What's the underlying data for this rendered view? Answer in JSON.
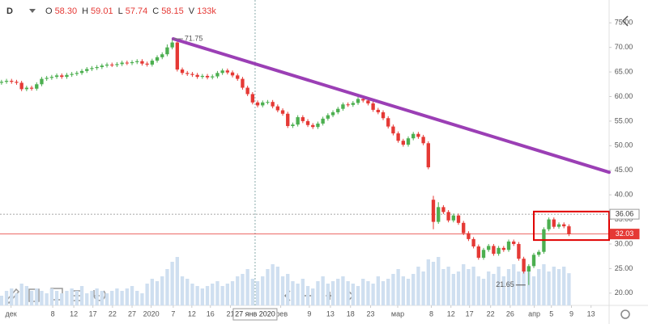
{
  "header": {
    "symbol": "D",
    "ohlcv": [
      {
        "label": "O",
        "value": "58.30"
      },
      {
        "label": "H",
        "value": "59.01"
      },
      {
        "label": "L",
        "value": "57.74"
      },
      {
        "label": "C",
        "value": "58.15"
      },
      {
        "label": "V",
        "value": "133k"
      }
    ]
  },
  "chart_data": {
    "type": "candlestick",
    "open": [
      62.8,
      63.0,
      63.2,
      63.0,
      62.8,
      61.5,
      61.8,
      61.6,
      62.5,
      63.6,
      63.8,
      64.0,
      64.3,
      64.0,
      64.4,
      64.6,
      64.8,
      65.2,
      65.6,
      65.8,
      66.0,
      66.3,
      66.5,
      66.4,
      66.6,
      66.9,
      66.8,
      67.0,
      67.2,
      66.7,
      66.5,
      67.3,
      68.0,
      68.6,
      70.0,
      71.0,
      65.5,
      64.8,
      64.6,
      64.4,
      64.0,
      64.2,
      63.9,
      64.1,
      64.8,
      65.3,
      64.9,
      64.3,
      63.6,
      61.8,
      60.5,
      58.8,
      58.2,
      58.8,
      58.9,
      58.0,
      57.2,
      56.5,
      54.0,
      54.3,
      55.8,
      55.0,
      54.2,
      53.8,
      54.5,
      55.5,
      56.2,
      56.8,
      57.5,
      58.4,
      58.3,
      58.7,
      59.5,
      59.2,
      58.6,
      57.3,
      56.8,
      55.6,
      53.9,
      52.5,
      51.0,
      50.2,
      51.5,
      52.4,
      51.8,
      50.5,
      39.0,
      34.5,
      37.5,
      36.5,
      34.8,
      35.8,
      34.3,
      32.2,
      31.0,
      29.5,
      27.2,
      28.8,
      29.6,
      28.0,
      29.2,
      28.8,
      30.5,
      30.0,
      27.0,
      24.4,
      25.5,
      27.8,
      28.4,
      33.0,
      35.0,
      33.5,
      34.0,
      33.6
    ],
    "high": [
      63.4,
      63.6,
      63.6,
      63.4,
      63.2,
      62.2,
      62.2,
      62.9,
      64.0,
      64.2,
      64.4,
      64.7,
      64.7,
      64.8,
      65.0,
      65.2,
      65.6,
      66.0,
      66.2,
      66.4,
      66.7,
      66.9,
      66.9,
      67.0,
      67.3,
      67.3,
      67.4,
      67.6,
      67.6,
      67.1,
      67.7,
      68.4,
      69.0,
      70.6,
      71.75,
      71.4,
      65.9,
      65.2,
      65.0,
      64.8,
      64.6,
      64.6,
      64.5,
      65.2,
      65.7,
      65.7,
      65.3,
      64.7,
      64.0,
      62.2,
      60.9,
      59.2,
      59.2,
      59.3,
      59.3,
      58.4,
      57.6,
      56.9,
      54.7,
      56.2,
      56.2,
      55.4,
      54.6,
      54.9,
      55.9,
      56.6,
      57.2,
      57.9,
      58.8,
      58.8,
      59.1,
      59.9,
      59.9,
      59.6,
      59.0,
      57.7,
      57.2,
      56.0,
      54.3,
      52.9,
      51.4,
      51.9,
      52.8,
      52.8,
      52.2,
      50.9,
      39.8,
      38.5,
      37.9,
      36.9,
      36.2,
      36.2,
      34.7,
      32.6,
      31.4,
      29.9,
      29.2,
      30.0,
      30.0,
      29.6,
      29.6,
      30.9,
      30.9,
      30.4,
      27.4,
      25.9,
      28.2,
      28.8,
      33.4,
      35.4,
      35.4,
      34.4,
      34.4,
      34.0
    ],
    "low": [
      62.4,
      62.6,
      62.6,
      62.4,
      61.1,
      61.1,
      61.2,
      61.2,
      62.1,
      63.2,
      63.4,
      63.6,
      63.6,
      63.6,
      64.0,
      64.2,
      64.4,
      64.8,
      65.2,
      65.4,
      65.6,
      65.9,
      66.0,
      66.0,
      66.2,
      66.4,
      66.4,
      66.6,
      66.3,
      66.1,
      66.1,
      66.9,
      67.6,
      68.2,
      69.6,
      65.1,
      64.4,
      64.2,
      64.0,
      63.6,
      63.6,
      63.5,
      63.5,
      63.7,
      64.4,
      64.5,
      63.9,
      63.2,
      61.4,
      60.1,
      58.4,
      57.8,
      57.8,
      58.4,
      57.6,
      56.8,
      56.1,
      53.6,
      53.6,
      53.9,
      54.6,
      53.8,
      53.4,
      53.4,
      54.1,
      55.1,
      55.8,
      56.4,
      57.1,
      57.9,
      57.9,
      58.3,
      58.8,
      58.2,
      56.9,
      56.4,
      55.2,
      53.5,
      52.1,
      50.6,
      49.8,
      49.8,
      51.1,
      51.4,
      50.1,
      45.2,
      33.0,
      34.1,
      36.1,
      34.4,
      34.4,
      33.9,
      31.8,
      30.6,
      29.1,
      26.8,
      26.8,
      28.4,
      27.6,
      27.6,
      28.4,
      28.4,
      29.6,
      26.6,
      24.0,
      21.65,
      25.1,
      27.4,
      28.0,
      32.6,
      33.1,
      33.1,
      33.2,
      31.6
    ],
    "close": [
      63.0,
      63.2,
      63.0,
      62.8,
      61.5,
      61.8,
      61.6,
      62.5,
      63.6,
      63.8,
      64.0,
      64.3,
      64.0,
      64.4,
      64.6,
      64.8,
      65.2,
      65.6,
      65.8,
      66.0,
      66.3,
      66.5,
      66.4,
      66.6,
      66.9,
      66.8,
      67.0,
      67.2,
      66.7,
      66.5,
      67.3,
      68.0,
      68.6,
      70.0,
      71.0,
      65.5,
      64.8,
      64.6,
      64.4,
      64.0,
      64.2,
      63.9,
      64.1,
      64.8,
      65.3,
      64.9,
      64.3,
      63.6,
      61.8,
      60.5,
      58.8,
      58.2,
      58.8,
      58.9,
      58.0,
      57.2,
      56.5,
      54.0,
      54.3,
      55.8,
      55.0,
      54.2,
      53.8,
      54.5,
      55.5,
      56.2,
      56.8,
      57.5,
      58.4,
      58.3,
      58.7,
      59.5,
      59.2,
      58.6,
      57.3,
      56.8,
      55.6,
      53.9,
      52.5,
      51.0,
      50.2,
      51.5,
      52.4,
      51.8,
      50.5,
      45.6,
      34.5,
      37.5,
      36.5,
      34.8,
      35.8,
      34.3,
      32.2,
      31.0,
      29.5,
      27.2,
      28.8,
      29.6,
      28.0,
      29.2,
      28.8,
      30.5,
      30.0,
      27.0,
      24.4,
      25.5,
      27.8,
      28.4,
      33.0,
      35.0,
      33.5,
      34.0,
      33.6,
      32.03
    ],
    "volume": [
      40,
      60,
      70,
      50,
      90,
      80,
      60,
      70,
      60,
      50,
      70,
      60,
      50,
      60,
      70,
      60,
      80,
      50,
      60,
      70,
      60,
      50,
      60,
      70,
      60,
      70,
      80,
      60,
      50,
      90,
      110,
      100,
      120,
      150,
      180,
      200,
      120,
      110,
      90,
      80,
      70,
      80,
      90,
      100,
      80,
      90,
      100,
      120,
      130,
      150,
      110,
      100,
      120,
      150,
      170,
      160,
      120,
      130,
      100,
      90,
      110,
      80,
      70,
      100,
      120,
      90,
      100,
      110,
      120,
      100,
      90,
      80,
      110,
      100,
      90,
      120,
      100,
      110,
      130,
      150,
      120,
      110,
      130,
      160,
      140,
      190,
      180,
      200,
      150,
      160,
      130,
      140,
      170,
      150,
      160,
      120,
      110,
      140,
      130,
      160,
      120,
      150,
      170,
      140,
      190,
      160,
      120,
      150,
      170,
      140,
      160,
      150,
      160,
      133
    ],
    "up_color": "#4caf50",
    "down_color": "#e53935",
    "volume_color": "#cfdff0",
    "xlim": [
      -0.3,
      121
    ],
    "ylim": [
      17.5,
      78
    ],
    "volume_ylim": [
      0,
      500
    ],
    "yticks": [
      {
        "value": 20,
        "label": "20.00"
      },
      {
        "value": 25,
        "label": "25.00"
      },
      {
        "value": 30,
        "label": "30.00"
      },
      {
        "value": 35,
        "label": "35.00"
      },
      {
        "value": 40,
        "label": "40.00"
      },
      {
        "value": 45,
        "label": "45.00"
      },
      {
        "value": 50,
        "label": "50.00"
      },
      {
        "value": 55,
        "label": "55.00"
      },
      {
        "value": 60,
        "label": "60.00"
      },
      {
        "value": 65,
        "label": "65.00"
      },
      {
        "value": 70,
        "label": "70.00"
      },
      {
        "value": 75,
        "label": "75.00"
      }
    ],
    "xticks": [
      {
        "value": 1.9,
        "label": "дек"
      },
      {
        "value": 10.2,
        "label": "8"
      },
      {
        "value": 14.4,
        "label": "12"
      },
      {
        "value": 18.2,
        "label": "17"
      },
      {
        "value": 22.1,
        "label": "22"
      },
      {
        "value": 26,
        "label": "27"
      },
      {
        "value": 29.8,
        "label": "2020"
      },
      {
        "value": 34.2,
        "label": "7"
      },
      {
        "value": 37.9,
        "label": "12"
      },
      {
        "value": 41.6,
        "label": "16"
      },
      {
        "value": 45.6,
        "label": "21"
      },
      {
        "value": 55.6,
        "label": "фев"
      },
      {
        "value": 61.3,
        "label": "9"
      },
      {
        "value": 65.5,
        "label": "13"
      },
      {
        "value": 69.5,
        "label": "18"
      },
      {
        "value": 73.5,
        "label": "23"
      },
      {
        "value": 78.9,
        "label": "мар"
      },
      {
        "value": 85.6,
        "label": "8"
      },
      {
        "value": 89.5,
        "label": "12"
      },
      {
        "value": 93.2,
        "label": "17"
      },
      {
        "value": 97.4,
        "label": "22"
      },
      {
        "value": 101.3,
        "label": "26"
      },
      {
        "value": 106.1,
        "label": "апр"
      },
      {
        "value": 109.5,
        "label": "5"
      },
      {
        "value": 113.5,
        "label": "9"
      },
      {
        "value": 117.4,
        "label": "13"
      }
    ],
    "crosshair": {
      "x": 50.5,
      "label": "27 янв 2020"
    },
    "trendline": {
      "x": [
        34.2,
        121
      ],
      "y": [
        71.75,
        44.6
      ],
      "color": "#9b3fb5"
    },
    "price_lines": [
      {
        "value": 36.06,
        "color": "#888888"
      },
      {
        "value": 32.03,
        "color": "#e53935"
      }
    ],
    "highlight_box": {
      "x": [
        106,
        121
      ],
      "y": [
        30.8,
        36.6
      ],
      "color": "#e00000"
    },
    "annotations": [
      {
        "x": 34.2,
        "y": 71.75,
        "text": "71.75"
      },
      {
        "x": 105,
        "y": 21.65,
        "text": "21.65"
      }
    ]
  }
}
